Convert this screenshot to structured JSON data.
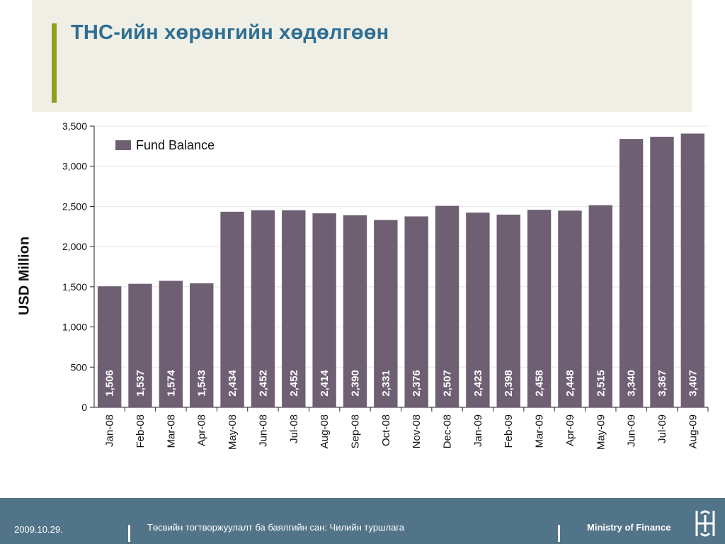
{
  "header": {
    "title": "ТНС-ийн хөрөнгийн хөдөлгөөн"
  },
  "footer": {
    "date": "2009.10.29.",
    "subtitle": "Төсвийн тогтворжуулалт ба баялгийн сан: Чилийн туршлага",
    "org": "Ministry of Finance"
  },
  "colors": {
    "bar": "#6e5f72",
    "title": "#2e6f93",
    "accent": "#8fa01e",
    "band": "#f0efe6",
    "footer": "#527489"
  },
  "chart_data": {
    "type": "bar",
    "categories": [
      "Jan-08",
      "Feb-08",
      "Mar-08",
      "Apr-08",
      "May-08",
      "Jun-08",
      "Jul-08",
      "Aug-08",
      "Sep-08",
      "Oct-08",
      "Nov-08",
      "Dec-08",
      "Jan-09",
      "Feb-09",
      "Mar-09",
      "Apr-09",
      "May-09",
      "Jun-09",
      "Jul-09",
      "Aug-09"
    ],
    "series": [
      {
        "name": "Fund Balance",
        "values": [
          1506,
          1537,
          1574,
          1543,
          2434,
          2452,
          2452,
          2414,
          2390,
          2331,
          2376,
          2507,
          2423,
          2398,
          2458,
          2448,
          2515,
          3340,
          3367,
          3407
        ],
        "labels": [
          "1,506",
          "1,537",
          "1,574",
          "1,543",
          "2,434",
          "2,452",
          "2,452",
          "2,414",
          "2,390",
          "2,331",
          "2,376",
          "2,507",
          "2,423",
          "2,398",
          "2,458",
          "2,448",
          "2,515",
          "3,340",
          "3,367",
          "3,407"
        ]
      }
    ],
    "ylabel": "USD Million",
    "ylim": [
      0,
      3500
    ],
    "yticks": [
      0,
      500,
      1000,
      1500,
      2000,
      2500,
      3000,
      3500
    ],
    "ytick_labels": [
      "0",
      "500",
      "1,000",
      "1,500",
      "2,000",
      "2,500",
      "3,000",
      "3,500"
    ],
    "legend_position": "top-left",
    "grid": true
  }
}
